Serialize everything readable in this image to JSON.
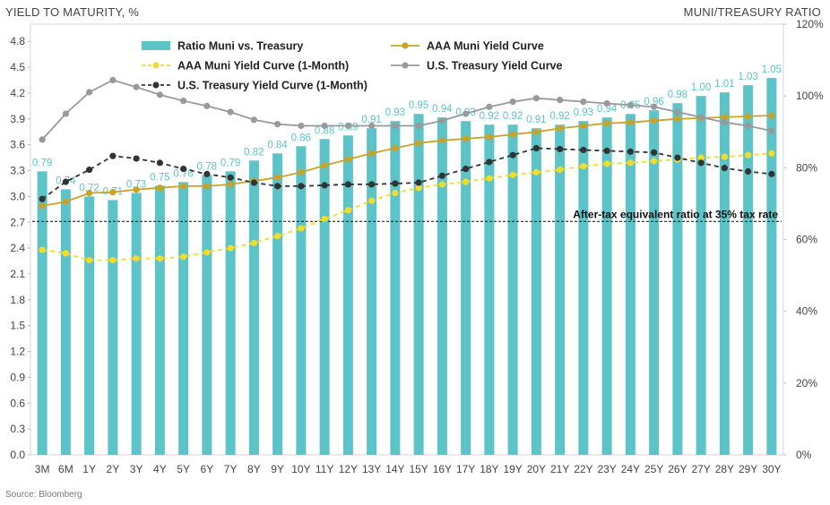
{
  "titles": {
    "left_axis": "YIELD TO MATURITY, %",
    "right_axis": "MUNI/TREASURY RATIO"
  },
  "source": "Source: Bloomberg",
  "chart_data": {
    "type": "bar+line",
    "categories": [
      "3M",
      "6M",
      "1Y",
      "2Y",
      "3Y",
      "4Y",
      "5Y",
      "6Y",
      "7Y",
      "8Y",
      "9Y",
      "10Y",
      "11Y",
      "12Y",
      "13Y",
      "14Y",
      "15Y",
      "16Y",
      "17Y",
      "18Y",
      "19Y",
      "20Y",
      "21Y",
      "22Y",
      "23Y",
      "24Y",
      "25Y",
      "26Y",
      "27Y",
      "28Y",
      "29Y",
      "30Y"
    ],
    "y_left": {
      "min": 0,
      "max": 5.0,
      "ticks": [
        "0.0",
        "0.3",
        "0.6",
        "0.9",
        "1.2",
        "1.5",
        "1.8",
        "2.1",
        "2.4",
        "2.7",
        "3.0",
        "3.3",
        "3.6",
        "3.9",
        "4.2",
        "4.5",
        "4.8"
      ]
    },
    "y_right": {
      "min": 0,
      "max": 120,
      "ticks": [
        "0%",
        "20%",
        "40%",
        "60%",
        "80%",
        "100%",
        "120%"
      ]
    },
    "bars": {
      "name": "Ratio Muni vs. Treasury",
      "color": "#5cc4c8",
      "values": [
        0.79,
        0.74,
        0.72,
        0.71,
        0.73,
        0.75,
        0.76,
        0.78,
        0.79,
        0.82,
        0.84,
        0.86,
        0.88,
        0.89,
        0.91,
        0.93,
        0.95,
        0.94,
        0.93,
        0.92,
        0.92,
        0.91,
        0.92,
        0.93,
        0.94,
        0.95,
        0.96,
        0.98,
        1.0,
        1.01,
        1.03,
        1.05
      ]
    },
    "series": [
      {
        "name": "AAA Muni Yield Curve",
        "color": "#c9a227",
        "dashed": false,
        "values": [
          2.89,
          2.94,
          3.04,
          3.05,
          3.08,
          3.1,
          3.12,
          3.12,
          3.14,
          3.18,
          3.22,
          3.28,
          3.36,
          3.43,
          3.5,
          3.56,
          3.62,
          3.65,
          3.67,
          3.69,
          3.72,
          3.75,
          3.79,
          3.82,
          3.85,
          3.86,
          3.88,
          3.9,
          3.91,
          3.92,
          3.93,
          3.94
        ]
      },
      {
        "name": "AAA Muni Yield Curve (1-Month)",
        "color": "#f2dc2b",
        "dashed": true,
        "values": [
          2.38,
          2.34,
          2.26,
          2.26,
          2.28,
          2.28,
          2.3,
          2.35,
          2.4,
          2.46,
          2.54,
          2.63,
          2.74,
          2.84,
          2.95,
          3.04,
          3.1,
          3.14,
          3.17,
          3.21,
          3.25,
          3.28,
          3.31,
          3.35,
          3.38,
          3.39,
          3.41,
          3.43,
          3.45,
          3.46,
          3.48,
          3.5
        ]
      },
      {
        "name": "U.S. Treasury Yield Curve",
        "color": "#999999",
        "dashed": false,
        "values": [
          3.66,
          3.96,
          4.21,
          4.35,
          4.27,
          4.18,
          4.11,
          4.05,
          3.98,
          3.89,
          3.84,
          3.82,
          3.82,
          3.82,
          3.82,
          3.82,
          3.82,
          3.88,
          3.96,
          4.04,
          4.1,
          4.14,
          4.12,
          4.1,
          4.08,
          4.06,
          4.04,
          3.98,
          3.92,
          3.86,
          3.82,
          3.76
        ]
      },
      {
        "name": "U.S. Treasury Yield Curve (1-Month)",
        "color": "#333333",
        "dashed": true,
        "values": [
          2.97,
          3.17,
          3.31,
          3.47,
          3.44,
          3.39,
          3.32,
          3.26,
          3.22,
          3.16,
          3.12,
          3.12,
          3.13,
          3.14,
          3.14,
          3.15,
          3.16,
          3.24,
          3.32,
          3.4,
          3.48,
          3.56,
          3.55,
          3.54,
          3.53,
          3.52,
          3.51,
          3.45,
          3.39,
          3.33,
          3.29,
          3.26
        ]
      }
    ],
    "reference_line": {
      "label": "After-tax equivalent ratio at 35% tax rate",
      "value": 2.71
    },
    "legend_position": "top"
  }
}
